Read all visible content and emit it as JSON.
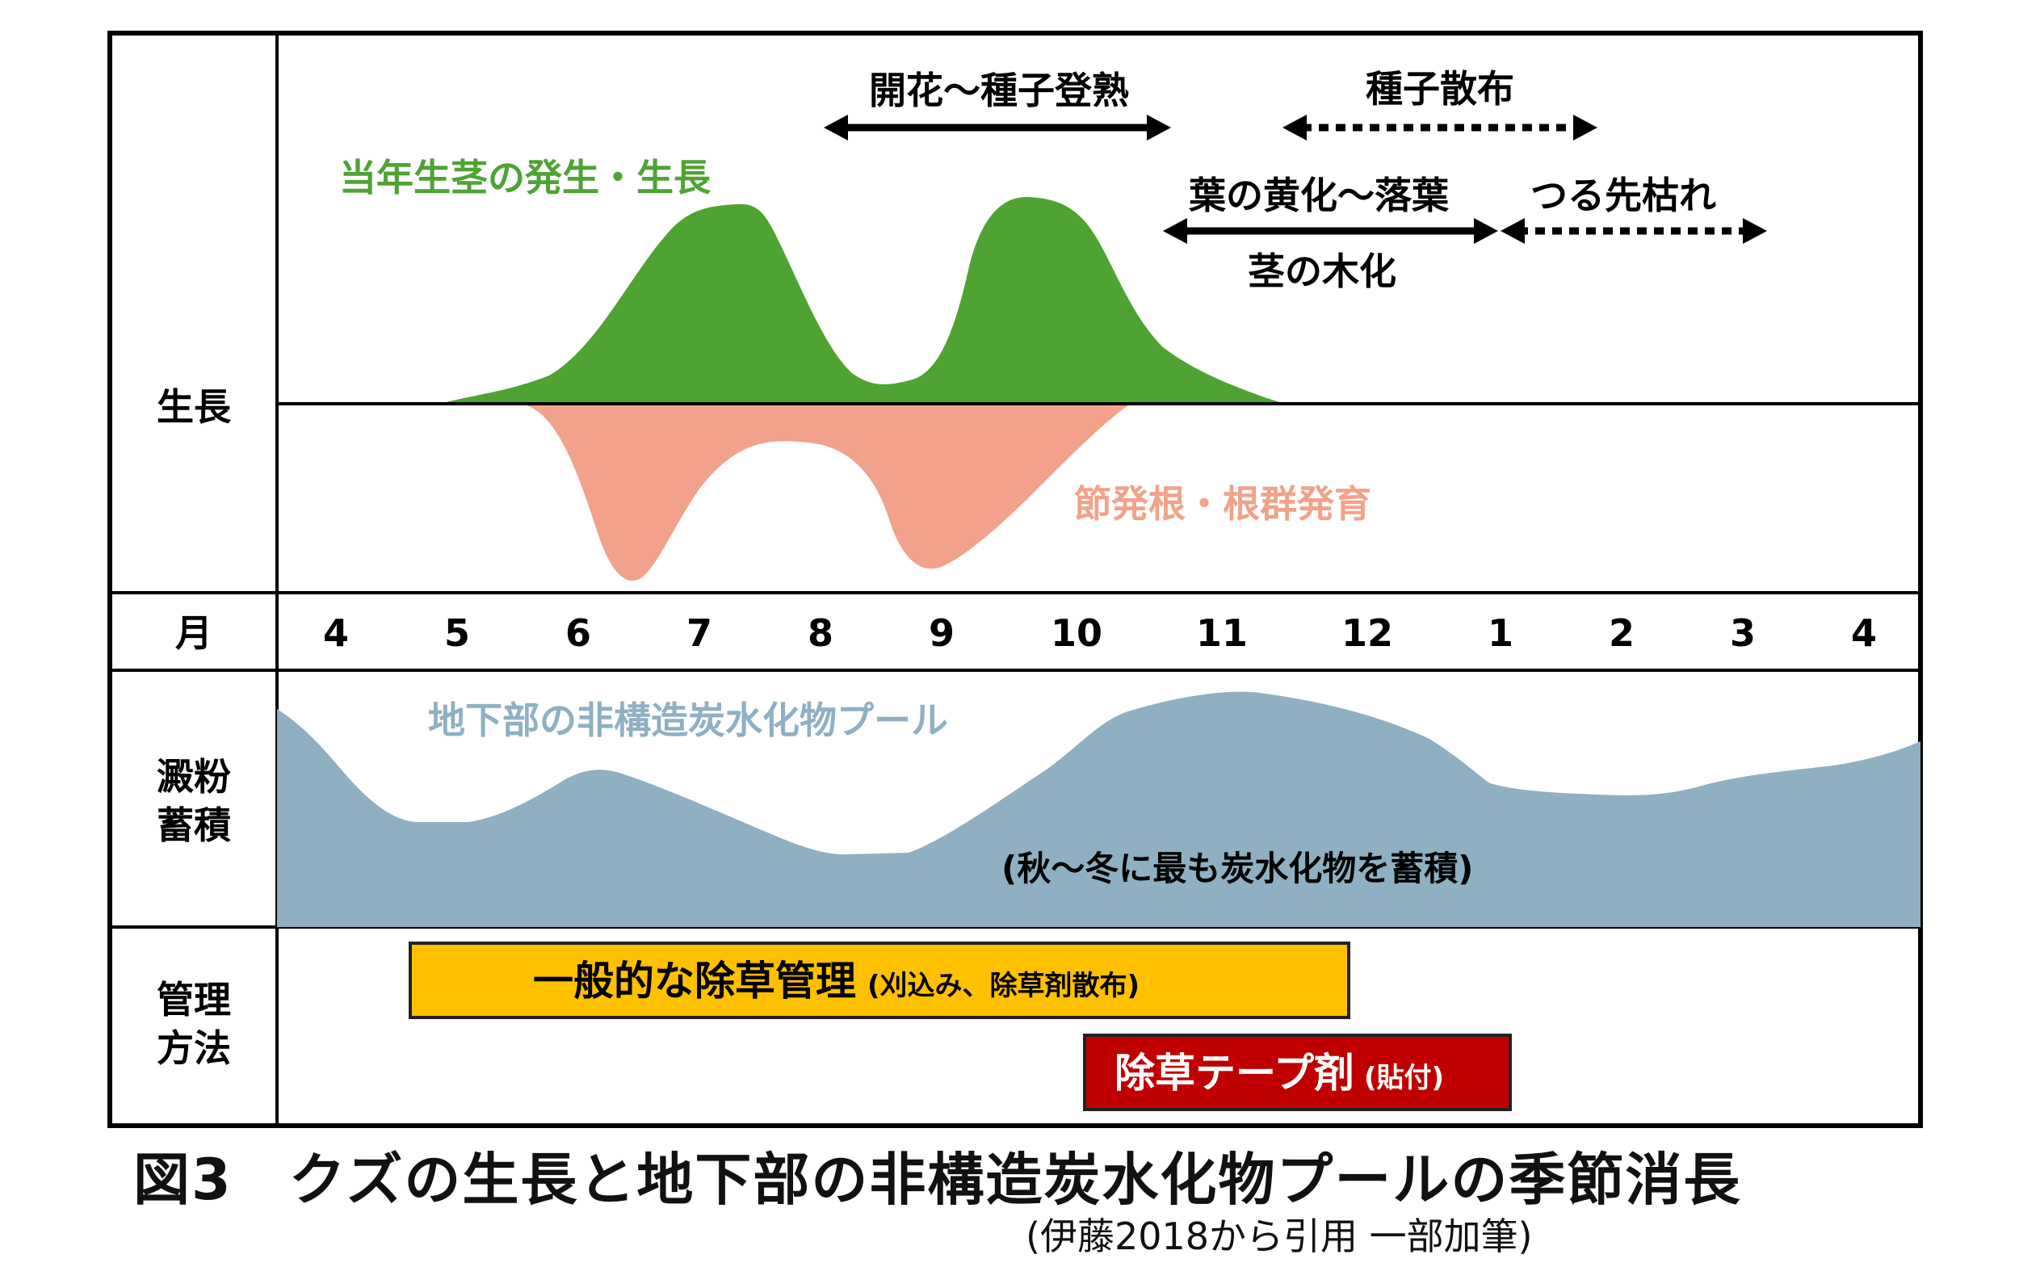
{
  "row_labels": {
    "growth": "生長",
    "month": "月",
    "starch_line1": "澱粉",
    "starch_line2": "蓄積",
    "mgmt_line1": "管理",
    "mgmt_line2": "方法"
  },
  "months": [
    "4",
    "5",
    "6",
    "7",
    "8",
    "9",
    "10",
    "11",
    "12",
    "1",
    "2",
    "3",
    "4"
  ],
  "growth_panel": {
    "stem_label": "当年生茎の発生・生長",
    "root_label": "節発根・根群発育",
    "stem_color": "#4fa333",
    "root_color": "#f2a28a"
  },
  "phenology": {
    "flowering": "開花〜種子登熟",
    "seed_dispersal": "種子散布",
    "leaf_yellowing": "葉の黄化〜落葉",
    "stem_lignification": "茎の木化",
    "vine_tip_dieback": "つる先枯れ"
  },
  "starch_panel": {
    "pool_label": "地下部の非構造炭水化物プール",
    "note": "(秋〜冬に最も炭水化物を蓄積)",
    "color": "#8eb0c2"
  },
  "management": {
    "general_main": "一般的な除草管理",
    "general_sub": "(刈込み、除草剤散布)",
    "general_color": "#ffc000",
    "tape_main": "除草テープ剤",
    "tape_sub": "(貼付)",
    "tape_color": "#c00000"
  },
  "caption": {
    "figure_no": "図3",
    "title": "クズの生長と地下部の非構造炭水化物プールの季節消長",
    "source": "(伊藤2018から引用 一部加筆)"
  }
}
